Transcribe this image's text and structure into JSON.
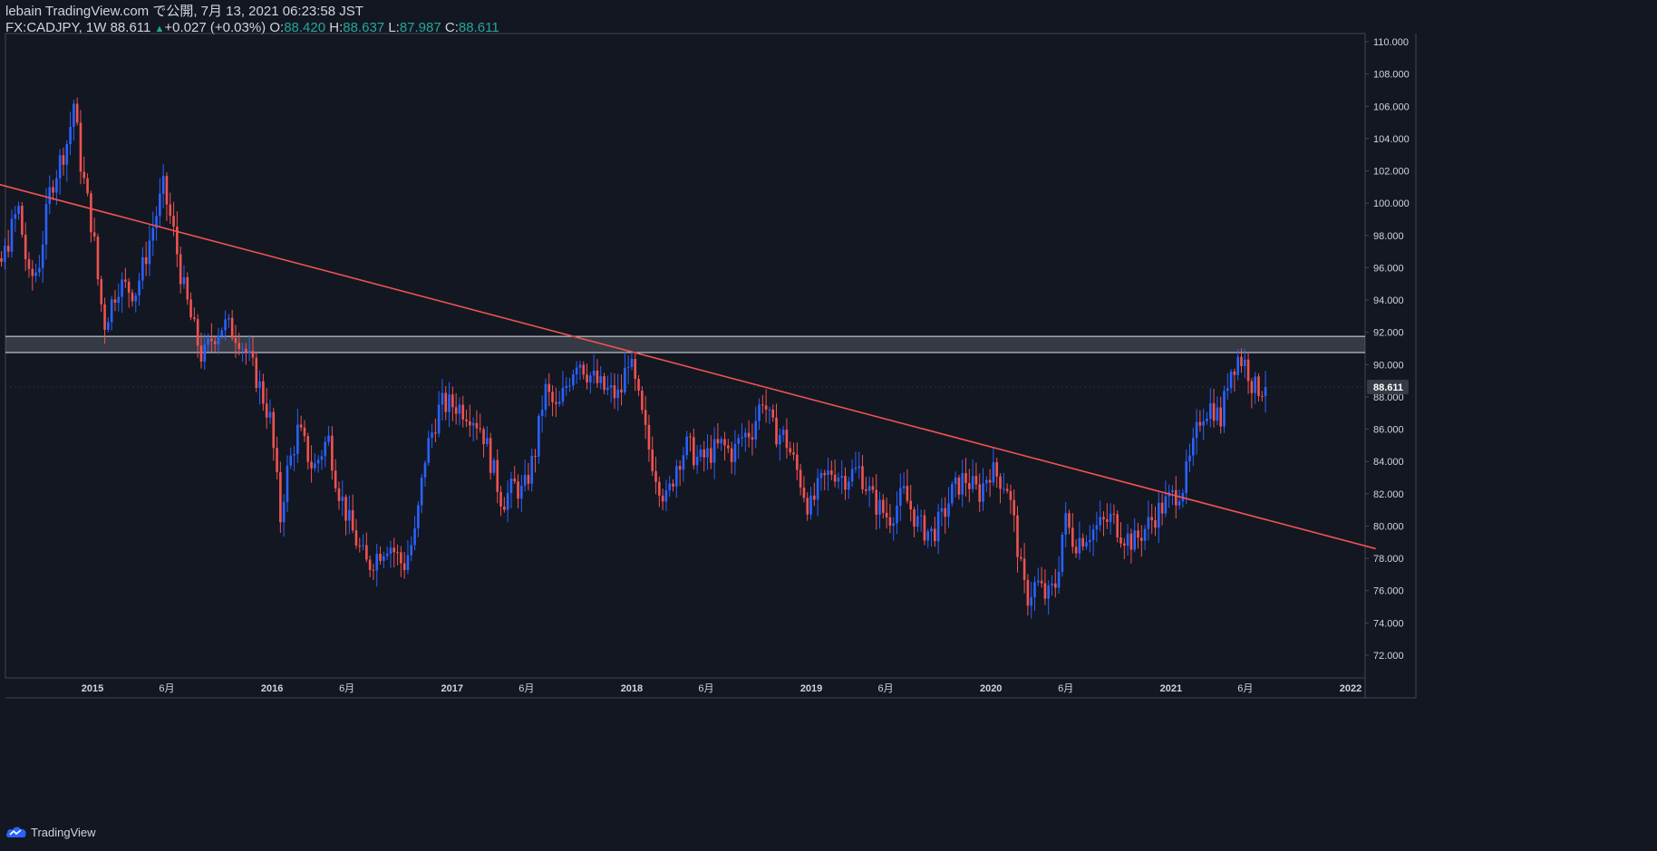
{
  "header": {
    "publisher_line": "lebain TradingView.com で公開, 7月 13, 2021 06:23:58 JST",
    "symbol": "FX:CADJPY, 1W",
    "last": "88.611",
    "change": "+0.027 (+0.03%)",
    "o_label": "O:",
    "o_value": "88.420",
    "h_label": "H:",
    "h_value": "88.637",
    "l_label": "L:",
    "l_value": "87.987",
    "c_label": "C:",
    "c_value": "88.611"
  },
  "footer": {
    "brand": "TradingView"
  },
  "colors": {
    "background": "#131722",
    "up": "#2962ff",
    "down": "#ef5350",
    "trendline": "#f05350",
    "zone_line": "#e0e3eb",
    "axis_text": "#d1d4dc",
    "price_badge": "#363a45"
  },
  "chart_data": {
    "type": "candlestick",
    "symbol": "FX:CADJPY",
    "interval": "1W",
    "ylim": [
      70.8,
      110.8
    ],
    "y_ticks": [
      "72.000",
      "74.000",
      "76.000",
      "78.000",
      "80.000",
      "82.000",
      "84.000",
      "86.000",
      "88.000",
      "90.000",
      "92.000",
      "94.000",
      "96.000",
      "98.000",
      "100.000",
      "102.000",
      "104.000",
      "106.000",
      "108.000",
      "110.000"
    ],
    "x_ticks": [
      {
        "label": "2015",
        "date": "2015-01-01"
      },
      {
        "label": "6月",
        "date": "2015-06-01"
      },
      {
        "label": "2016",
        "date": "2016-01-01"
      },
      {
        "label": "6月",
        "date": "2016-06-01"
      },
      {
        "label": "2017",
        "date": "2017-01-01"
      },
      {
        "label": "6月",
        "date": "2017-06-01"
      },
      {
        "label": "2018",
        "date": "2018-01-01"
      },
      {
        "label": "6月",
        "date": "2018-06-01"
      },
      {
        "label": "2019",
        "date": "2019-01-01"
      },
      {
        "label": "6月",
        "date": "2019-06-01"
      },
      {
        "label": "2020",
        "date": "2020-01-01"
      },
      {
        "label": "6月",
        "date": "2020-06-01"
      },
      {
        "label": "2021",
        "date": "2021-01-01"
      },
      {
        "label": "6月",
        "date": "2021-06-01"
      },
      {
        "label": "2022",
        "date": "2022-01-01"
      }
    ],
    "first_candle_date": "2014-04-07",
    "last_price": "88.611",
    "trendline": {
      "start": {
        "date": "2014-04-07",
        "price": 101.8
      },
      "end": {
        "date": "2022-02-21",
        "price": 78.6
      }
    },
    "resistance_zone": {
      "upper": 91.75,
      "lower": 90.75
    },
    "close_path": [
      [
        "2014-04-07",
        94.5
      ],
      [
        "2014-05-20",
        93.0
      ],
      [
        "2014-07-10",
        96.5
      ],
      [
        "2014-08-10",
        99.8
      ],
      [
        "2014-09-01",
        95.2
      ],
      [
        "2014-09-20",
        96.0
      ],
      [
        "2014-10-15",
        101.0
      ],
      [
        "2014-11-20",
        104.0
      ],
      [
        "2014-12-01",
        106.2
      ],
      [
        "2014-12-15",
        102.5
      ],
      [
        "2015-01-10",
        98.0
      ],
      [
        "2015-01-20",
        95.0
      ],
      [
        "2015-02-01",
        92.5
      ],
      [
        "2015-03-01",
        95.0
      ],
      [
        "2015-04-05",
        94.5
      ],
      [
        "2015-04-20",
        96.0
      ],
      [
        "2015-05-15",
        99.0
      ],
      [
        "2015-06-01",
        100.9
      ],
      [
        "2015-06-20",
        98.5
      ],
      [
        "2015-07-10",
        95.0
      ],
      [
        "2015-07-30",
        92.5
      ],
      [
        "2015-08-20",
        90.3
      ],
      [
        "2015-09-10",
        91.8
      ],
      [
        "2015-10-01",
        92.5
      ],
      [
        "2015-11-01",
        91.8
      ],
      [
        "2015-12-10",
        89.0
      ],
      [
        "2016-01-05",
        86.5
      ],
      [
        "2016-01-25",
        80.5
      ],
      [
        "2016-02-05",
        83.0
      ],
      [
        "2016-03-01",
        86.0
      ],
      [
        "2016-04-01",
        83.5
      ],
      [
        "2016-05-01",
        85.5
      ],
      [
        "2016-05-20",
        82.5
      ],
      [
        "2016-06-15",
        80.0
      ],
      [
        "2016-07-05",
        78.5
      ],
      [
        "2016-07-20",
        77.5
      ],
      [
        "2016-08-15",
        78.5
      ],
      [
        "2016-09-01",
        79.0
      ],
      [
        "2016-10-01",
        77.5
      ],
      [
        "2016-10-25",
        79.5
      ],
      [
        "2016-11-15",
        84.5
      ],
      [
        "2016-12-15",
        87.5
      ],
      [
        "2017-01-15",
        87.5
      ],
      [
        "2017-02-15",
        87.0
      ],
      [
        "2017-03-10",
        86.0
      ],
      [
        "2017-04-01",
        83.5
      ],
      [
        "2017-04-20",
        81.5
      ],
      [
        "2017-05-15",
        82.5
      ],
      [
        "2017-06-01",
        82.0
      ],
      [
        "2017-06-25",
        84.5
      ],
      [
        "2017-07-15",
        88.5
      ],
      [
        "2017-08-10",
        87.0
      ],
      [
        "2017-08-25",
        88.5
      ],
      [
        "2017-09-20",
        90.5
      ],
      [
        "2017-10-10",
        89.5
      ],
      [
        "2017-11-10",
        88.5
      ],
      [
        "2017-12-15",
        88.0
      ],
      [
        "2018-01-01",
        90.5
      ],
      [
        "2018-01-20",
        88.0
      ],
      [
        "2018-02-10",
        85.0
      ],
      [
        "2018-03-01",
        83.0
      ],
      [
        "2018-03-20",
        81.5
      ],
      [
        "2018-04-10",
        84.0
      ],
      [
        "2018-05-01",
        85.0
      ],
      [
        "2018-05-25",
        84.0
      ],
      [
        "2018-06-15",
        84.5
      ],
      [
        "2018-07-10",
        85.0
      ],
      [
        "2018-08-01",
        84.5
      ],
      [
        "2018-08-20",
        85.5
      ],
      [
        "2018-09-10",
        86.0
      ],
      [
        "2018-10-01",
        88.0
      ],
      [
        "2018-10-20",
        86.0
      ],
      [
        "2018-11-15",
        85.5
      ],
      [
        "2018-12-15",
        83.0
      ],
      [
        "2019-01-05",
        81.0
      ],
      [
        "2019-01-25",
        82.5
      ],
      [
        "2019-02-20",
        83.5
      ],
      [
        "2019-03-15",
        83.0
      ],
      [
        "2019-04-15",
        83.5
      ],
      [
        "2019-05-15",
        81.5
      ],
      [
        "2019-06-15",
        80.5
      ],
      [
        "2019-07-15",
        82.0
      ],
      [
        "2019-08-15",
        80.0
      ],
      [
        "2019-09-10",
        79.5
      ],
      [
        "2019-10-01",
        80.5
      ],
      [
        "2019-10-20",
        82.0
      ],
      [
        "2019-11-15",
        83.0
      ],
      [
        "2019-12-15",
        82.0
      ],
      [
        "2020-01-05",
        83.5
      ],
      [
        "2020-01-25",
        83.0
      ],
      [
        "2020-02-10",
        82.5
      ],
      [
        "2020-02-25",
        80.0
      ],
      [
        "2020-03-10",
        77.0
      ],
      [
        "2020-03-20",
        75.5
      ],
      [
        "2020-04-10",
        76.5
      ],
      [
        "2020-05-01",
        75.5
      ],
      [
        "2020-05-20",
        76.5
      ],
      [
        "2020-06-05",
        80.5
      ],
      [
        "2020-06-25",
        79.0
      ],
      [
        "2020-07-20",
        79.5
      ],
      [
        "2020-08-15",
        80.0
      ],
      [
        "2020-09-10",
        80.5
      ],
      [
        "2020-10-01",
        79.5
      ],
      [
        "2020-10-25",
        79.0
      ],
      [
        "2020-11-20",
        80.0
      ],
      [
        "2020-12-15",
        81.0
      ],
      [
        "2021-01-10",
        81.8
      ],
      [
        "2021-02-01",
        82.5
      ],
      [
        "2021-02-20",
        84.5
      ],
      [
        "2021-03-10",
        87.0
      ],
      [
        "2021-04-01",
        87.5
      ],
      [
        "2021-04-20",
        86.5
      ],
      [
        "2021-05-05",
        89.5
      ],
      [
        "2021-05-25",
        90.5
      ],
      [
        "2021-06-10",
        90.0
      ],
      [
        "2021-06-25",
        88.5
      ],
      [
        "2021-07-12",
        88.6
      ]
    ]
  }
}
